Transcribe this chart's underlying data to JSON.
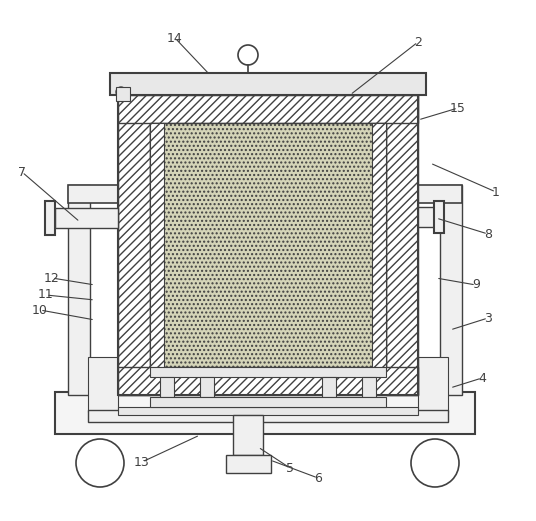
{
  "bg_color": "#ffffff",
  "line_color": "#404040",
  "label_color": "#404040",
  "figsize": [
    5.36,
    5.21
  ],
  "dpi": 100,
  "label_data": [
    [
      "1",
      496,
      192,
      430,
      163
    ],
    [
      "2",
      418,
      42,
      350,
      95
    ],
    [
      "3",
      488,
      318,
      450,
      330
    ],
    [
      "4",
      482,
      378,
      450,
      388
    ],
    [
      "5",
      290,
      468,
      258,
      447
    ],
    [
      "6",
      318,
      478,
      270,
      460
    ],
    [
      "7",
      22,
      172,
      80,
      222
    ],
    [
      "8",
      488,
      234,
      436,
      218
    ],
    [
      "9",
      476,
      285,
      436,
      278
    ],
    [
      "10",
      40,
      310,
      95,
      320
    ],
    [
      "11",
      46,
      295,
      95,
      300
    ],
    [
      "12",
      52,
      278,
      95,
      285
    ],
    [
      "13",
      142,
      462,
      200,
      435
    ],
    [
      "14",
      175,
      38,
      210,
      75
    ],
    [
      "15",
      458,
      108,
      418,
      120
    ]
  ]
}
